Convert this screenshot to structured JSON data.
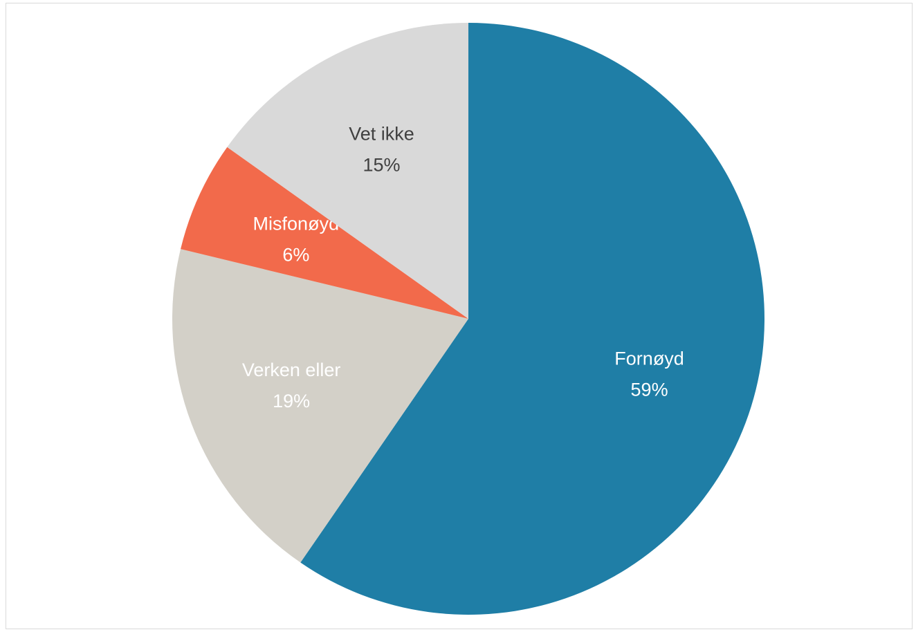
{
  "chart_data": {
    "type": "pie",
    "categories": [
      "Fornøyd",
      "Verken eller",
      "Misfonøyd",
      "Vet ikke"
    ],
    "values": [
      59,
      19,
      6,
      15
    ],
    "value_labels": [
      "59%",
      "19%",
      "6%",
      "15%"
    ],
    "colors": [
      "#1f7ea6",
      "#d3d0c8",
      "#f26a4b",
      "#d9d9d9"
    ],
    "label_colors": [
      "#ffffff",
      "#ffffff",
      "#ffffff",
      "#404040"
    ]
  }
}
